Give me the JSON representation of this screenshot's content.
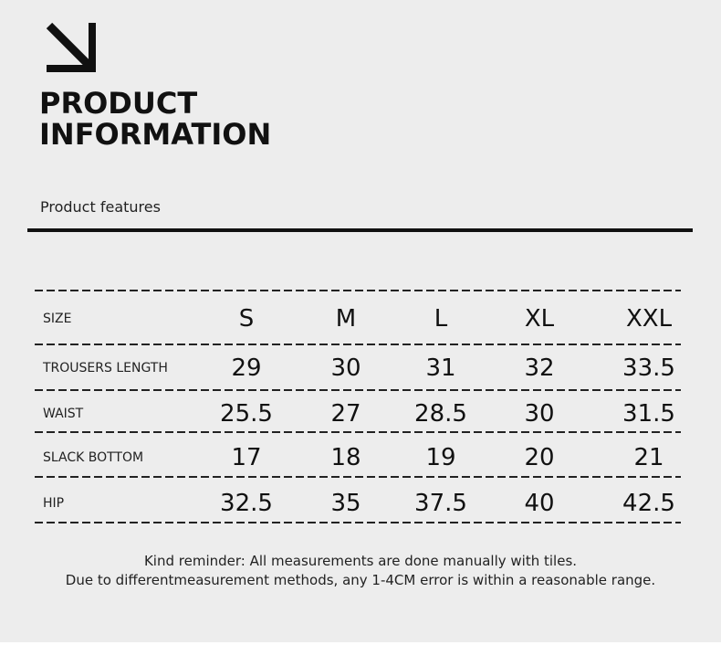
{
  "header": {
    "icon": "arrow-down-right-icon",
    "title_line1": "PRODUCT",
    "title_line2": "INFORMATION",
    "subtitle": "Product features"
  },
  "table": {
    "header": {
      "label": "SIZE",
      "sizes": [
        "S",
        "M",
        "L",
        "XL",
        "XXL"
      ]
    },
    "rows": [
      {
        "label": "TROUSERS LENGTH",
        "values": [
          "29",
          "30",
          "31",
          "32",
          "33.5"
        ]
      },
      {
        "label": "WAIST",
        "values": [
          "25.5",
          "27",
          "28.5",
          "30",
          "31.5"
        ]
      },
      {
        "label": "SLACK BOTTOM",
        "values": [
          "17",
          "18",
          "19",
          "20",
          "21"
        ]
      },
      {
        "label": "HIP",
        "values": [
          "32.5",
          "35",
          "37.5",
          "40",
          "42.5"
        ]
      }
    ]
  },
  "notes": {
    "line1": "Kind reminder: All measurements are done manually with tiles.",
    "line2": "Due to differentmeasurement methods, any 1-4CM error is within a reasonable range."
  },
  "colors": {
    "background": "#ededed",
    "text": "#111111"
  }
}
